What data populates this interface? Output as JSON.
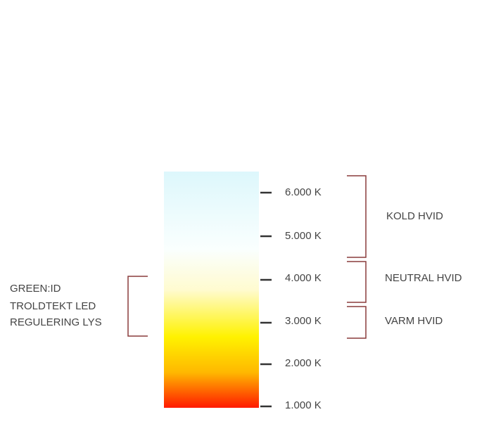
{
  "scale": {
    "ticks": [
      "6.000 K",
      "5.000 K",
      "4.000 K",
      "3.000 K",
      "2.000 K",
      "1.000 K"
    ]
  },
  "ranges": [
    "KOLD HVID",
    "NEUTRAL HVID",
    "VARM HVID"
  ],
  "side_label": {
    "lines": [
      "GREEN:ID",
      "TROLDTEKT LED",
      "REGULERING LYS"
    ]
  }
}
